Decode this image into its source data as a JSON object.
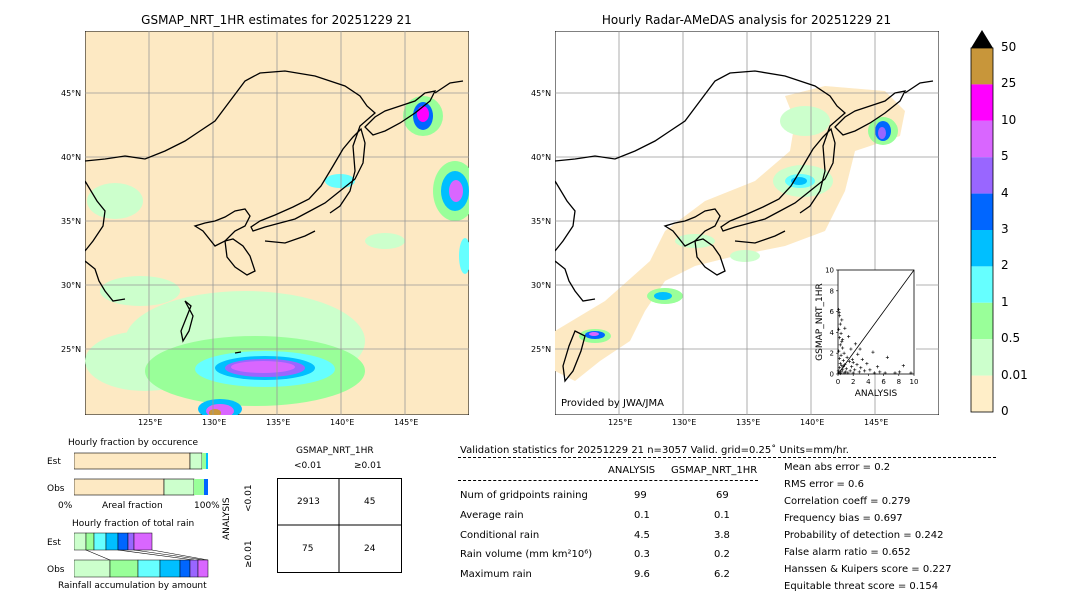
{
  "map_left": {
    "title": "GSMAP_NRT_1HR estimates for 20251229 21",
    "lat_labels": [
      "45°N",
      "40°N",
      "35°N",
      "30°N",
      "25°N"
    ],
    "lon_labels": [
      "125°E",
      "130°E",
      "135°E",
      "140°E",
      "145°E"
    ]
  },
  "map_right": {
    "title": "Hourly Radar-AMeDAS analysis for 20251229 21",
    "lat_labels": [
      "45°N",
      "40°N",
      "35°N",
      "30°N",
      "25°N"
    ],
    "lon_labels": [
      "125°E",
      "130°E",
      "135°E",
      "140°E",
      "145°E"
    ],
    "credit": "Provided by JWA/JMA"
  },
  "colorbar": {
    "labels": [
      "50",
      "25",
      "10",
      "5",
      "4",
      "3",
      "2",
      "1",
      "0.5",
      "0.01",
      "0"
    ],
    "colors": [
      "#c8963a",
      "#ff00ff",
      "#d966ff",
      "#9966ff",
      "#0066ff",
      "#00bfff",
      "#66ffff",
      "#99ff99",
      "#ccffcc",
      "#ffeec8"
    ]
  },
  "colors": {
    "land_bg": "#fde9c3",
    "light_green": "#ccffcc",
    "green": "#99ff99",
    "cyan": "#66ffff",
    "sky": "#00bfff",
    "blue": "#0066ff",
    "violet": "#9966ff",
    "purple": "#d966ff",
    "magenta": "#ff00ff",
    "brown": "#c8963a"
  },
  "fraction_occurrence": {
    "title": "Hourly fraction by occurence",
    "rows": [
      "Est",
      "Obs"
    ],
    "xlabel_left": "0%",
    "xlabel_mid": "Areal fraction",
    "xlabel_right": "100%"
  },
  "fraction_total": {
    "title": "Hourly fraction of total rain",
    "rows": [
      "Est",
      "Obs"
    ],
    "xlabel": "Rainfall accumulation by amount"
  },
  "contingency": {
    "col_title": "GSMAP_NRT_1HR",
    "col_labels": [
      "<0.01",
      "≥0.01"
    ],
    "row_title": "ANALYSIS",
    "row_labels": [
      "<0.01",
      "≥0.01"
    ],
    "cells": [
      [
        "2913",
        "45"
      ],
      [
        "75",
        "24"
      ]
    ]
  },
  "validation": {
    "header": "Validation statistics for 20251229 21  n=3057 Valid. grid=0.25˚ Units=mm/hr.",
    "col_analysis": "ANALYSIS",
    "col_gsmap": "GSMAP_NRT_1HR",
    "rows": [
      {
        "label": "Num of gridpoints raining",
        "analysis": "99",
        "gsmap": "69"
      },
      {
        "label": "Average rain",
        "analysis": "0.1",
        "gsmap": "0.1"
      },
      {
        "label": "Conditional rain",
        "analysis": "4.5",
        "gsmap": "3.8"
      },
      {
        "label": "Rain volume (mm km²10⁶)",
        "analysis": "0.3",
        "gsmap": "0.2"
      },
      {
        "label": "Maximum rain",
        "analysis": "9.6",
        "gsmap": "6.2"
      }
    ],
    "scores": [
      "Mean abs error =    0.2",
      "RMS error =    0.6",
      "Correlation coeff =  0.279",
      "Frequency bias =  0.697",
      "Probability of detection =  0.242",
      "False alarm ratio =  0.652",
      "Hanssen & Kuipers score =  0.227",
      "Equitable threat score =  0.154"
    ]
  },
  "chart_data": {
    "type": "scatter",
    "xlabel": "ANALYSIS",
    "ylabel": "GSMAP_NRT_1HR",
    "xlim": [
      0,
      10
    ],
    "ylim": [
      0,
      10
    ],
    "xticks": [
      "0",
      "2",
      "4",
      "6",
      "8",
      "10"
    ],
    "yticks": [
      "0",
      "2",
      "4",
      "6",
      "8",
      "10"
    ],
    "points": [
      [
        0.1,
        6.2
      ],
      [
        0.2,
        5.6
      ],
      [
        0.3,
        4.8
      ],
      [
        0.1,
        4.3
      ],
      [
        0.4,
        3.9
      ],
      [
        0.2,
        3.5
      ],
      [
        0.5,
        3.1
      ],
      [
        0.3,
        2.8
      ],
      [
        0.6,
        2.5
      ],
      [
        0.1,
        2.2
      ],
      [
        0.8,
        2.0
      ],
      [
        0.4,
        1.8
      ],
      [
        1.2,
        1.6
      ],
      [
        0.2,
        1.5
      ],
      [
        0.7,
        1.3
      ],
      [
        1.5,
        1.2
      ],
      [
        0.3,
        1.0
      ],
      [
        2.0,
        1.1
      ],
      [
        0.9,
        0.9
      ],
      [
        0.5,
        0.8
      ],
      [
        1.8,
        0.7
      ],
      [
        2.5,
        0.9
      ],
      [
        0.2,
        0.6
      ],
      [
        1.1,
        0.5
      ],
      [
        3.0,
        0.6
      ],
      [
        0.6,
        0.4
      ],
      [
        1.6,
        0.3
      ],
      [
        2.2,
        0.4
      ],
      [
        0.4,
        0.2
      ],
      [
        3.5,
        0.3
      ],
      [
        2.8,
        0.2
      ],
      [
        4.2,
        0.4
      ],
      [
        1.3,
        0.1
      ],
      [
        0.8,
        0.1
      ],
      [
        5.5,
        0.2
      ],
      [
        4.8,
        0.1
      ],
      [
        6.2,
        0.1
      ],
      [
        7.5,
        0.1
      ],
      [
        8.1,
        0.2
      ],
      [
        9.6,
        0.1
      ],
      [
        8.6,
        0.8
      ],
      [
        6.5,
        1.6
      ],
      [
        2.6,
        1.9
      ],
      [
        1.7,
        2.4
      ],
      [
        3.2,
        1.4
      ],
      [
        4.6,
        2.1
      ],
      [
        2.3,
        2.9
      ],
      [
        1.4,
        3.6
      ],
      [
        0.9,
        4.4
      ],
      [
        0.5,
        5.2
      ],
      [
        0.15,
        5.9
      ],
      [
        3.8,
        1.0
      ],
      [
        5.2,
        0.7
      ],
      [
        2.0,
        0.1
      ],
      [
        1.0,
        0.2
      ],
      [
        0.3,
        0.05
      ],
      [
        0.05,
        0.3
      ],
      [
        0.1,
        0.1
      ],
      [
        0.7,
        0.7
      ],
      [
        1.9,
        1.4
      ],
      [
        2.9,
        2.4
      ],
      [
        0.6,
        3.3
      ]
    ]
  }
}
